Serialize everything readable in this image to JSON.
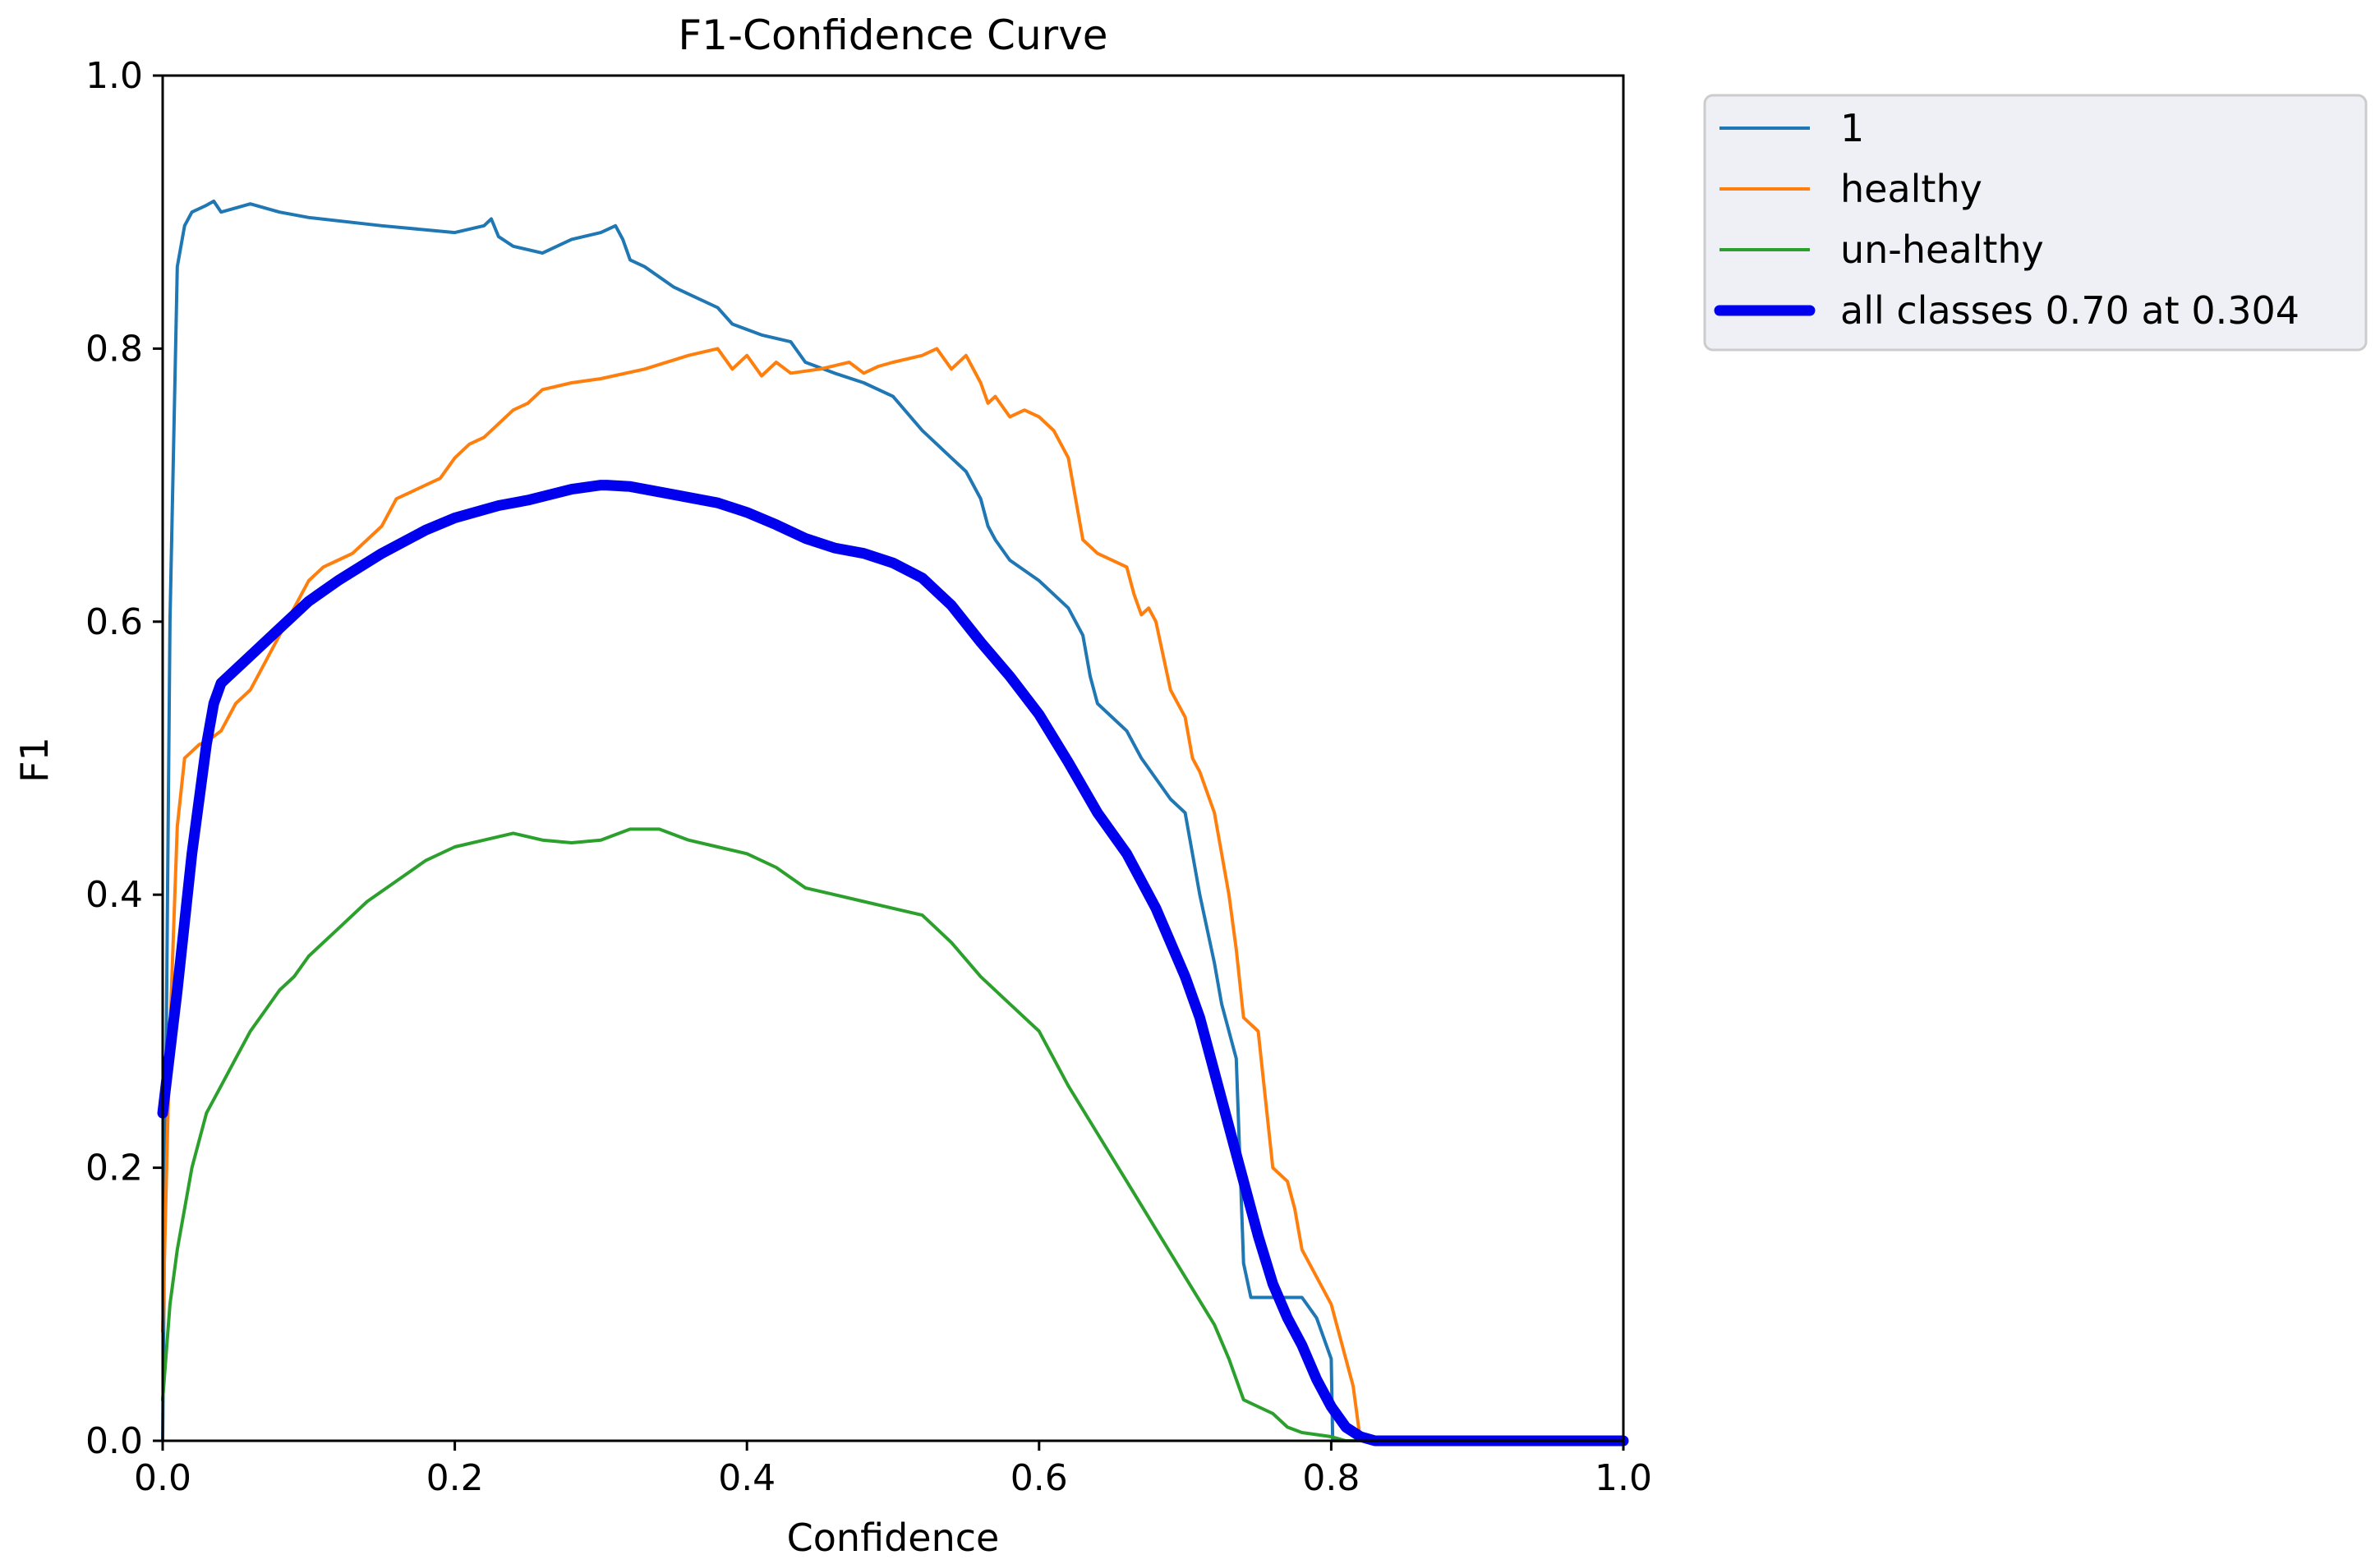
{
  "chart_data": {
    "type": "line",
    "title": "F1-Confidence Curve",
    "xlabel": "Confidence",
    "ylabel": "F1",
    "xlim": [
      0,
      1
    ],
    "ylim": [
      0,
      1
    ],
    "x_ticks": [
      "0.0",
      "0.2",
      "0.4",
      "0.6",
      "0.8",
      "1.0"
    ],
    "y_ticks": [
      "0.0",
      "0.2",
      "0.4",
      "0.6",
      "0.8",
      "1.0"
    ],
    "legend_position": "outside-top-right",
    "series": [
      {
        "name": "1",
        "color": "#1f77b4",
        "x": [
          0.0,
          0.005,
          0.01,
          0.015,
          0.02,
          0.03,
          0.035,
          0.04,
          0.05,
          0.06,
          0.08,
          0.1,
          0.15,
          0.2,
          0.22,
          0.225,
          0.23,
          0.24,
          0.26,
          0.28,
          0.3,
          0.31,
          0.315,
          0.32,
          0.33,
          0.35,
          0.36,
          0.38,
          0.39,
          0.41,
          0.43,
          0.44,
          0.46,
          0.48,
          0.5,
          0.52,
          0.53,
          0.54,
          0.55,
          0.56,
          0.565,
          0.57,
          0.58,
          0.6,
          0.62,
          0.63,
          0.635,
          0.64,
          0.66,
          0.67,
          0.69,
          0.7,
          0.71,
          0.72,
          0.725,
          0.73,
          0.735,
          0.74,
          0.745,
          0.76,
          0.78,
          0.79,
          0.795,
          0.8,
          0.801,
          0.81,
          0.84,
          0.9,
          1.0
        ],
        "y": [
          0.0,
          0.6,
          0.86,
          0.89,
          0.9,
          0.905,
          0.908,
          0.9,
          0.903,
          0.906,
          0.9,
          0.896,
          0.89,
          0.885,
          0.89,
          0.895,
          0.882,
          0.875,
          0.87,
          0.88,
          0.885,
          0.89,
          0.88,
          0.865,
          0.86,
          0.845,
          0.84,
          0.83,
          0.818,
          0.81,
          0.805,
          0.79,
          0.782,
          0.775,
          0.765,
          0.74,
          0.73,
          0.72,
          0.71,
          0.69,
          0.67,
          0.66,
          0.645,
          0.63,
          0.61,
          0.59,
          0.56,
          0.54,
          0.52,
          0.5,
          0.47,
          0.46,
          0.4,
          0.35,
          0.32,
          0.3,
          0.28,
          0.13,
          0.105,
          0.105,
          0.105,
          0.09,
          0.075,
          0.06,
          0.0,
          0.0,
          0.0,
          0.0,
          0.0
        ]
      },
      {
        "name": "healthy",
        "color": "#ff7f0e",
        "x": [
          0.0,
          0.005,
          0.01,
          0.015,
          0.02,
          0.025,
          0.03,
          0.04,
          0.05,
          0.06,
          0.07,
          0.08,
          0.09,
          0.1,
          0.11,
          0.12,
          0.13,
          0.14,
          0.15,
          0.16,
          0.17,
          0.18,
          0.19,
          0.2,
          0.21,
          0.22,
          0.23,
          0.24,
          0.25,
          0.26,
          0.28,
          0.3,
          0.33,
          0.36,
          0.38,
          0.39,
          0.4,
          0.41,
          0.42,
          0.43,
          0.45,
          0.47,
          0.48,
          0.49,
          0.5,
          0.52,
          0.53,
          0.54,
          0.55,
          0.56,
          0.565,
          0.57,
          0.58,
          0.59,
          0.6,
          0.61,
          0.62,
          0.63,
          0.64,
          0.66,
          0.665,
          0.67,
          0.675,
          0.68,
          0.69,
          0.7,
          0.705,
          0.71,
          0.72,
          0.73,
          0.735,
          0.74,
          0.75,
          0.755,
          0.76,
          0.77,
          0.775,
          0.78,
          0.79,
          0.8,
          0.81,
          0.815,
          0.82,
          0.84,
          0.9,
          1.0
        ],
        "y": [
          0.08,
          0.3,
          0.45,
          0.5,
          0.505,
          0.51,
          0.512,
          0.52,
          0.54,
          0.55,
          0.57,
          0.59,
          0.61,
          0.63,
          0.64,
          0.645,
          0.65,
          0.66,
          0.67,
          0.69,
          0.695,
          0.7,
          0.705,
          0.72,
          0.73,
          0.735,
          0.745,
          0.755,
          0.76,
          0.77,
          0.775,
          0.778,
          0.785,
          0.795,
          0.8,
          0.785,
          0.795,
          0.78,
          0.79,
          0.782,
          0.785,
          0.79,
          0.782,
          0.787,
          0.79,
          0.795,
          0.8,
          0.785,
          0.795,
          0.775,
          0.76,
          0.765,
          0.75,
          0.755,
          0.75,
          0.74,
          0.72,
          0.66,
          0.65,
          0.64,
          0.62,
          0.605,
          0.61,
          0.6,
          0.55,
          0.53,
          0.5,
          0.49,
          0.46,
          0.4,
          0.36,
          0.31,
          0.3,
          0.25,
          0.2,
          0.19,
          0.17,
          0.14,
          0.12,
          0.1,
          0.06,
          0.04,
          0.0,
          0.0,
          0.0,
          0.0
        ]
      },
      {
        "name": "un-healthy",
        "color": "#2ca02c",
        "x": [
          0.0,
          0.005,
          0.01,
          0.02,
          0.03,
          0.04,
          0.05,
          0.06,
          0.07,
          0.08,
          0.09,
          0.1,
          0.12,
          0.14,
          0.16,
          0.18,
          0.2,
          0.22,
          0.24,
          0.26,
          0.28,
          0.3,
          0.32,
          0.34,
          0.36,
          0.38,
          0.4,
          0.42,
          0.44,
          0.46,
          0.48,
          0.5,
          0.52,
          0.54,
          0.56,
          0.58,
          0.6,
          0.62,
          0.64,
          0.66,
          0.68,
          0.7,
          0.72,
          0.73,
          0.74,
          0.75,
          0.76,
          0.77,
          0.78,
          0.8,
          0.81,
          0.83,
          0.9,
          1.0
        ],
        "y": [
          0.03,
          0.1,
          0.14,
          0.2,
          0.24,
          0.26,
          0.28,
          0.3,
          0.315,
          0.33,
          0.34,
          0.355,
          0.375,
          0.395,
          0.41,
          0.425,
          0.435,
          0.44,
          0.445,
          0.44,
          0.438,
          0.44,
          0.448,
          0.448,
          0.44,
          0.435,
          0.43,
          0.42,
          0.405,
          0.4,
          0.395,
          0.39,
          0.385,
          0.365,
          0.34,
          0.32,
          0.3,
          0.26,
          0.225,
          0.19,
          0.155,
          0.12,
          0.085,
          0.06,
          0.03,
          0.025,
          0.02,
          0.01,
          0.006,
          0.003,
          0.0,
          0.0,
          0.0,
          0.0
        ]
      },
      {
        "name": "all classes 0.70 at 0.304",
        "color": "#0000ee",
        "bold": true,
        "x": [
          0.0,
          0.01,
          0.02,
          0.03,
          0.035,
          0.04,
          0.06,
          0.08,
          0.1,
          0.12,
          0.15,
          0.18,
          0.2,
          0.23,
          0.25,
          0.28,
          0.3,
          0.304,
          0.32,
          0.35,
          0.38,
          0.4,
          0.42,
          0.44,
          0.46,
          0.48,
          0.5,
          0.52,
          0.54,
          0.56,
          0.58,
          0.6,
          0.62,
          0.64,
          0.66,
          0.68,
          0.7,
          0.71,
          0.72,
          0.73,
          0.74,
          0.75,
          0.76,
          0.77,
          0.78,
          0.79,
          0.8,
          0.81,
          0.82,
          0.83,
          0.84,
          0.9,
          1.0
        ],
        "y": [
          0.24,
          0.33,
          0.43,
          0.51,
          0.54,
          0.555,
          0.575,
          0.595,
          0.615,
          0.63,
          0.65,
          0.667,
          0.676,
          0.685,
          0.689,
          0.697,
          0.7,
          0.7,
          0.699,
          0.693,
          0.687,
          0.68,
          0.671,
          0.661,
          0.654,
          0.65,
          0.643,
          0.632,
          0.612,
          0.585,
          0.56,
          0.532,
          0.497,
          0.46,
          0.43,
          0.39,
          0.34,
          0.31,
          0.27,
          0.23,
          0.19,
          0.15,
          0.115,
          0.09,
          0.07,
          0.045,
          0.025,
          0.01,
          0.003,
          0.0,
          0.0,
          0.0,
          0.0
        ]
      }
    ]
  }
}
